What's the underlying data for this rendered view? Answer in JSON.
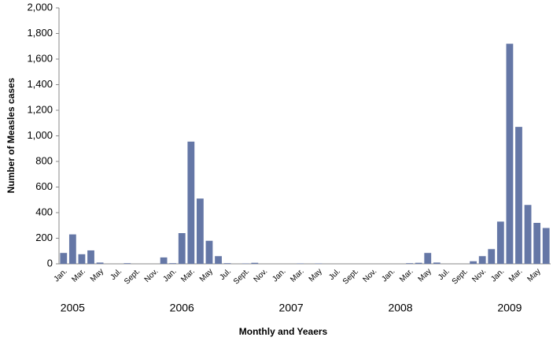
{
  "chart_data": {
    "type": "bar",
    "y_label": "Number of Measles cases",
    "x_label": "Monthly and Yeaers",
    "categories": [
      "Jan.",
      null,
      "Mar.",
      null,
      "May",
      null,
      "Jul.",
      null,
      "Sept.",
      null,
      "Nov.",
      null,
      "Jan.",
      null,
      "Mar.",
      null,
      "May",
      null,
      "Jul.",
      null,
      "Sept.",
      null,
      "Nov.",
      null,
      "Jan.",
      null,
      "Mar.",
      null,
      "May",
      null,
      "Jul.",
      null,
      "Sept.",
      null,
      "Nov.",
      null,
      "Jan.",
      null,
      "Mar.",
      null,
      "May",
      null,
      "Jul.",
      null,
      "Sept.",
      null,
      "Nov.",
      null,
      "Jan.",
      null,
      "Mar.",
      null,
      "May",
      null
    ],
    "year_groups": [
      "2005",
      "2006",
      "2007",
      "2008",
      "2009"
    ],
    "values": [
      85,
      230,
      75,
      105,
      10,
      0,
      0,
      5,
      0,
      0,
      0,
      50,
      5,
      240,
      955,
      510,
      180,
      60,
      5,
      0,
      3,
      8,
      0,
      0,
      0,
      0,
      3,
      0,
      3,
      0,
      0,
      0,
      0,
      0,
      0,
      0,
      0,
      0,
      5,
      8,
      85,
      10,
      0,
      0,
      0,
      20,
      60,
      115,
      330,
      1720,
      1070,
      460,
      320,
      280
    ],
    "color": "#6577a6",
    "ylim": [
      0,
      2000
    ],
    "yticks": [
      0,
      200,
      400,
      600,
      800,
      {
        "value": 1000,
        "label": "1,000"
      },
      {
        "value": 1200,
        "label": "1,200"
      },
      {
        "value": 1400,
        "label": "1,400"
      },
      {
        "value": 1600,
        "label": "1,600"
      },
      {
        "value": 1800,
        "label": "1,800"
      },
      {
        "value": 2000,
        "label": "2,000"
      }
    ],
    "grid": false
  }
}
